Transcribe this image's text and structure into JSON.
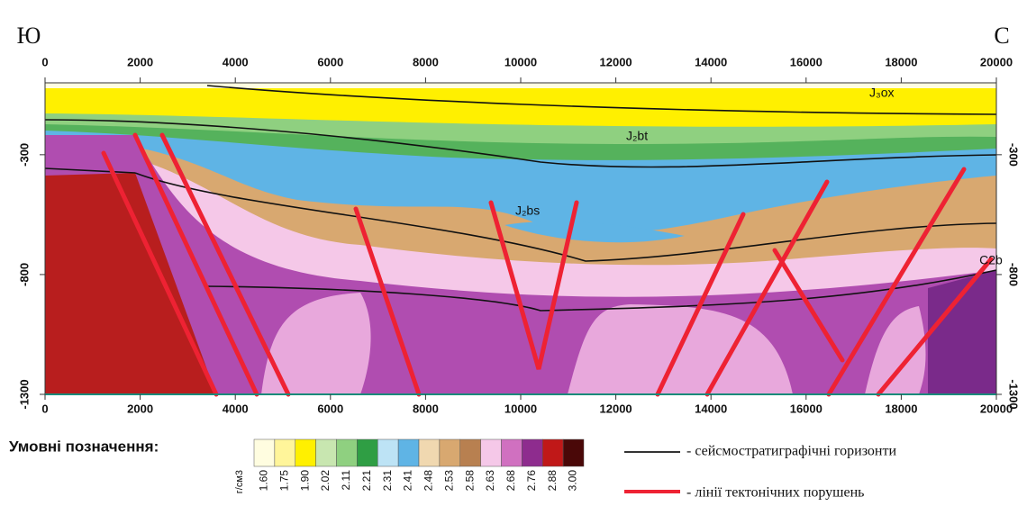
{
  "header": {
    "left": "Ю",
    "right": "С"
  },
  "section": {
    "xlim": [
      0,
      20000
    ],
    "ylim": [
      -1300,
      0
    ],
    "xticks": [
      0,
      2000,
      4000,
      6000,
      8000,
      10000,
      12000,
      14000,
      16000,
      18000,
      20000
    ],
    "yticks": [
      -300,
      -800,
      -1300
    ],
    "horizon_labels": [
      "J₃ox",
      "J₂bt",
      "J₂bs",
      "C2b"
    ]
  },
  "legend": {
    "title": "Умовні позначення:",
    "unit": "г/см3",
    "levels": [
      {
        "label": "1.60",
        "color": "#fffde0"
      },
      {
        "label": "1.75",
        "color": "#fff59a"
      },
      {
        "label": "1.90",
        "color": "#fff000"
      },
      {
        "label": "2.02",
        "color": "#c8e6b0"
      },
      {
        "label": "2.11",
        "color": "#8fd080"
      },
      {
        "label": "2.21",
        "color": "#2f9e44"
      },
      {
        "label": "2.31",
        "color": "#bde3f5"
      },
      {
        "label": "2.41",
        "color": "#5fb4e5"
      },
      {
        "label": "2.48",
        "color": "#f0d8b0"
      },
      {
        "label": "2.53",
        "color": "#d8a870"
      },
      {
        "label": "2.58",
        "color": "#b88050"
      },
      {
        "label": "2.63",
        "color": "#f5c8e8"
      },
      {
        "label": "2.68",
        "color": "#d070c0"
      },
      {
        "label": "2.76",
        "color": "#8e2c8e"
      },
      {
        "label": "2.88",
        "color": "#c01818"
      },
      {
        "label": "3.00",
        "color": "#4a0808"
      }
    ],
    "lines": [
      "- сейсмостратиграфічні горизонти",
      "- лінії тектонічних порушень"
    ]
  }
}
